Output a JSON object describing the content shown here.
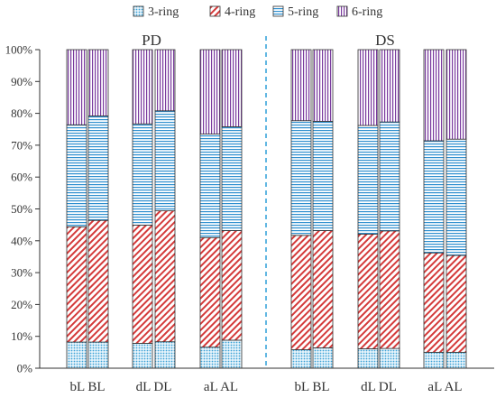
{
  "chart_data": {
    "type": "bar",
    "stacked": true,
    "percent_stacked": true,
    "legend_position": "top",
    "grid": false,
    "ylim": [
      0,
      100
    ],
    "yticks": [
      "0%",
      "10%",
      "20%",
      "30%",
      "40%",
      "50%",
      "60%",
      "70%",
      "80%",
      "90%",
      "100%"
    ],
    "panels": [
      {
        "title": "PD",
        "groups": [
          {
            "label": "bL BL",
            "categories": [
              "bL",
              "BL"
            ]
          },
          {
            "label": "dL DL",
            "categories": [
              "dL",
              "DL"
            ]
          },
          {
            "label": "aL AL",
            "categories": [
              "aL",
              "AL"
            ]
          }
        ]
      },
      {
        "title": "DS",
        "groups": [
          {
            "label": "bL BL",
            "categories": [
              "bL",
              "BL"
            ]
          },
          {
            "label": "dL DL",
            "categories": [
              "dL",
              "DL"
            ]
          },
          {
            "label": "aL AL",
            "categories": [
              "aL",
              "AL"
            ]
          }
        ]
      }
    ],
    "series": [
      {
        "name": "3-ring",
        "color": "#3aa1d6",
        "pattern": "dots",
        "values": [
          8.2,
          8.2,
          7.8,
          8.3,
          6.6,
          8.8,
          5.8,
          6.4,
          6.1,
          6.2,
          5.0,
          5.0
        ]
      },
      {
        "name": "4-ring",
        "color": "#d43a3a",
        "pattern": "diagonal",
        "values": [
          36.2,
          38.2,
          37.1,
          41.1,
          34.4,
          34.4,
          35.9,
          36.8,
          36.0,
          36.9,
          31.2,
          30.4
        ]
      },
      {
        "name": "5-ring",
        "color": "#2e8fcf",
        "pattern": "horizontal",
        "values": [
          32.0,
          32.8,
          31.8,
          31.4,
          32.5,
          32.6,
          36.0,
          34.3,
          34.1,
          34.2,
          35.2,
          36.5
        ]
      },
      {
        "name": "6-ring",
        "color": "#7a3b9e",
        "pattern": "vertical",
        "values": [
          23.6,
          20.8,
          23.3,
          19.2,
          26.5,
          24.2,
          22.3,
          22.5,
          23.8,
          22.7,
          28.6,
          28.1
        ]
      }
    ]
  }
}
